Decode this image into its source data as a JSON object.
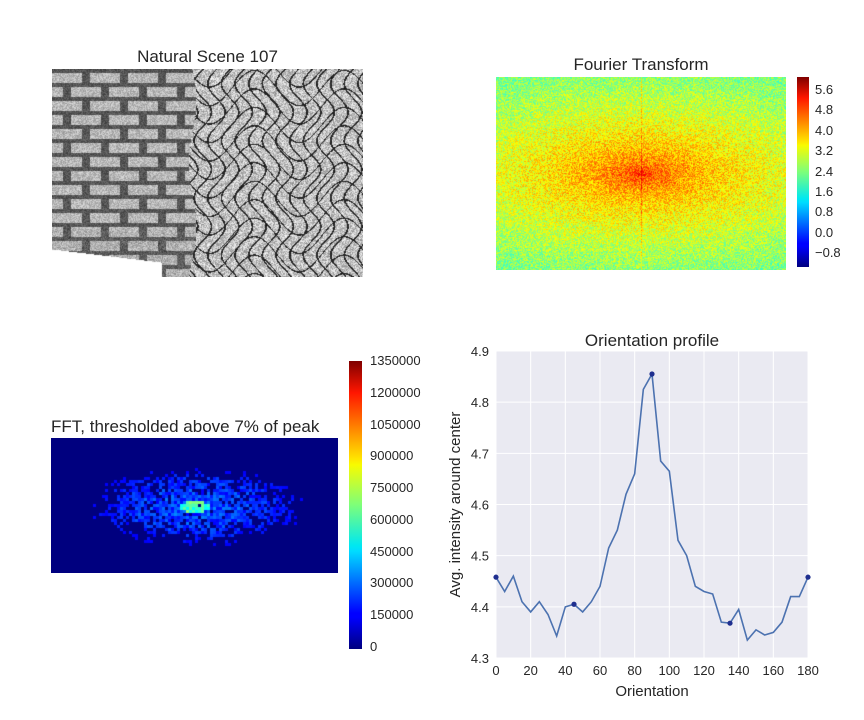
{
  "panels": {
    "scene": {
      "title": "Natural Scene 107"
    },
    "fourier": {
      "title": "Fourier Transform",
      "colorbar_ticks": [
        "5.6",
        "4.8",
        "4.0",
        "3.2",
        "2.4",
        "1.6",
        "0.8",
        "0.0",
        "−0.8"
      ],
      "colorbar_range": [
        -1.2,
        6.0
      ],
      "colormap": "jet"
    },
    "thresholded": {
      "title": "FFT, thresholded above 7% of peak",
      "colorbar_ticks": [
        "1350000",
        "1200000",
        "1050000",
        "900000",
        "750000",
        "600000",
        "450000",
        "300000",
        "150000",
        "0"
      ],
      "colorbar_range": [
        0,
        1350000
      ],
      "colormap": "jet"
    }
  },
  "chart_data": {
    "type": "line",
    "title": "Orientation profile",
    "xlabel": "Orientation",
    "ylabel": "Avg. intensity around center",
    "xlim": [
      0,
      180
    ],
    "ylim": [
      4.3,
      4.9
    ],
    "x_ticks": [
      0,
      20,
      40,
      60,
      80,
      100,
      120,
      140,
      160,
      180
    ],
    "y_ticks": [
      4.3,
      4.4,
      4.5,
      4.6,
      4.7,
      4.8,
      4.9
    ],
    "x_tick_labels": [
      "0",
      "20",
      "40",
      "60",
      "80",
      "100",
      "120",
      "140",
      "160",
      "180"
    ],
    "y_tick_labels": [
      "4.3",
      "4.4",
      "4.5",
      "4.6",
      "4.7",
      "4.8",
      "4.9"
    ],
    "grid": true,
    "background": "#eaeaf2",
    "line_color": "#4c72b0",
    "marker_color": "#1f2f8f",
    "x": [
      0,
      5,
      10,
      15,
      20,
      25,
      30,
      35,
      40,
      45,
      50,
      55,
      60,
      65,
      70,
      75,
      80,
      85,
      90,
      95,
      100,
      105,
      110,
      115,
      120,
      125,
      130,
      135,
      140,
      145,
      150,
      155,
      160,
      165,
      170,
      175,
      180
    ],
    "y": [
      4.458,
      4.43,
      4.46,
      4.41,
      4.39,
      4.41,
      4.385,
      4.343,
      4.4,
      4.405,
      4.39,
      4.41,
      4.44,
      4.515,
      4.55,
      4.62,
      4.66,
      4.825,
      4.855,
      4.685,
      4.665,
      4.53,
      4.5,
      4.44,
      4.43,
      4.425,
      4.37,
      4.368,
      4.395,
      4.335,
      4.355,
      4.345,
      4.35,
      4.37,
      4.42,
      4.42,
      4.458
    ],
    "markers": [
      [
        0,
        4.458
      ],
      [
        45,
        4.405
      ],
      [
        90,
        4.855
      ],
      [
        135,
        4.368
      ],
      [
        180,
        4.458
      ]
    ]
  }
}
